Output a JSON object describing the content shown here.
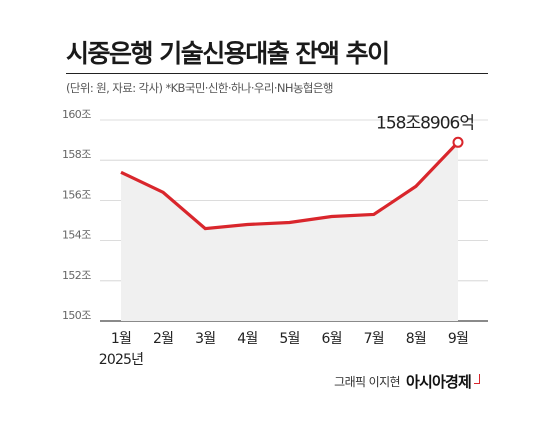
{
  "title": "시중은행 기술신용대출 잔액 추이",
  "subtitle": "(단위: 원, 자료: 각사) *KB국민·신한·하나·우리·NH농협은행",
  "credit": {
    "author": "그래픽 이지현",
    "brand": "아시아경제"
  },
  "colors": {
    "line": "#d9262c",
    "area": "#f0f0f0",
    "grid": "#d0d0d0"
  },
  "chart_data": {
    "type": "area",
    "categories": [
      "1월",
      "2월",
      "3월",
      "4월",
      "5월",
      "6월",
      "7월",
      "8월",
      "9월"
    ],
    "year_label": "2025년",
    "unit": "조",
    "series": [
      {
        "values": [
          157.4,
          156.4,
          154.6,
          154.8,
          154.9,
          155.2,
          155.3,
          156.7,
          158.89
        ]
      }
    ],
    "ylim": [
      150,
      160
    ],
    "yticks": [
      "160조",
      "158조",
      "156조",
      "154조",
      "152조",
      "150조"
    ],
    "ytick_values": [
      160,
      158,
      156,
      154,
      152,
      150
    ],
    "annotation": {
      "index": 8,
      "text": "158조8906억"
    },
    "grid": true
  }
}
